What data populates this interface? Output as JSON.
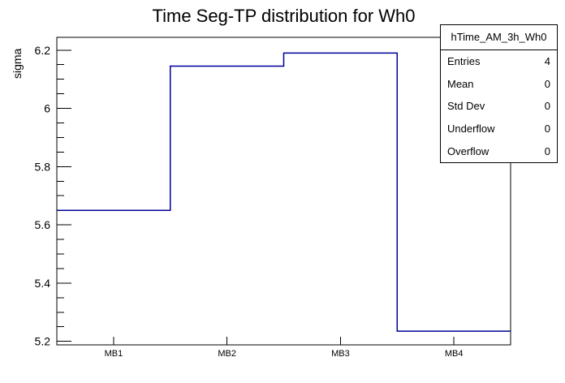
{
  "chart_data": {
    "type": "step-histogram",
    "title": "Time Seg-TP distribution for Wh0",
    "ylabel": "sigma",
    "xlabel": "",
    "categories": [
      "MB1",
      "MB2",
      "MB3",
      "MB4"
    ],
    "values": [
      5.65,
      6.145,
      6.19,
      5.235
    ],
    "ylim": [
      5.188,
      6.244
    ],
    "yticks": [
      5.2,
      5.4,
      5.6,
      5.8,
      6.0,
      6.2
    ],
    "ytick_labels": [
      "5.2",
      "5.4",
      "5.6",
      "5.8",
      "6",
      "6.2"
    ],
    "minor_tick_step": 0.05,
    "grid": false,
    "legend": "none",
    "line_color": "#000099"
  },
  "stats_box": {
    "title": "hTime_AM_3h_Wh0",
    "rows": [
      {
        "label": "Entries",
        "value": "4"
      },
      {
        "label": "Mean",
        "value": "0"
      },
      {
        "label": "Std Dev",
        "value": "0"
      },
      {
        "label": "Underflow",
        "value": "0"
      },
      {
        "label": "Overflow",
        "value": "0"
      }
    ]
  },
  "colors": {
    "line": "#000099",
    "frame": "#000000",
    "background": "#ffffff"
  }
}
